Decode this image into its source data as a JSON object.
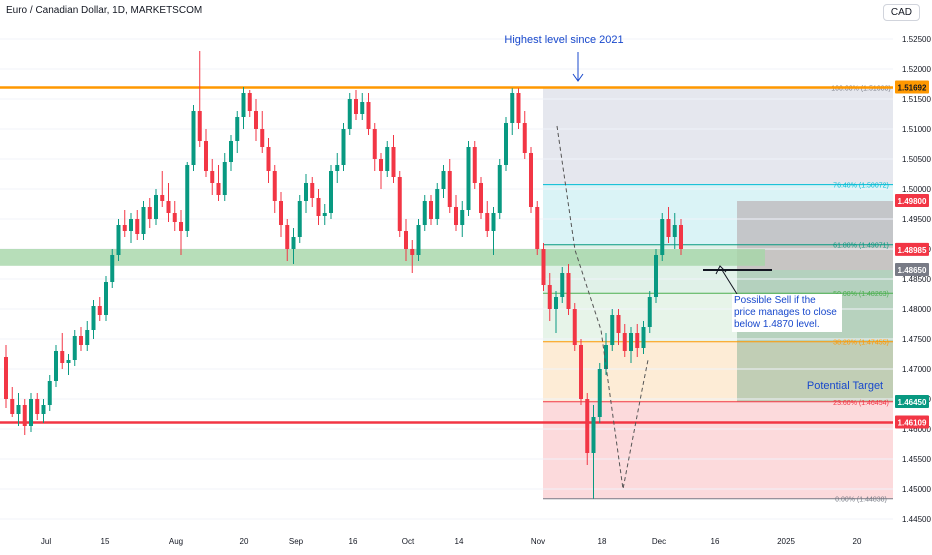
{
  "header": {
    "title": "Euro / Canadian Dollar, 1D, MARKETSCOM",
    "currency": "CAD"
  },
  "chart_data": {
    "type": "candlestick",
    "title": "Euro / Canadian Dollar, 1D, MARKETSCOM",
    "ylim": [
      1.4425,
      1.528
    ],
    "y_ticks": [
      "1.52500",
      "1.52000",
      "1.51500",
      "1.51000",
      "1.50500",
      "1.50000",
      "1.49500",
      "1.49000",
      "1.48500",
      "1.48000",
      "1.47500",
      "1.47000",
      "1.46500",
      "1.46000",
      "1.45500",
      "1.45000",
      "1.44500"
    ],
    "x_ticks": [
      "Jul",
      "15",
      "Aug",
      "20",
      "Sep",
      "16",
      "Oct",
      "14",
      "Nov",
      "18",
      "Dec",
      "16",
      "2025",
      "20"
    ],
    "candles": [
      [
        1.472,
        1.474,
        1.4635,
        1.465
      ],
      [
        1.465,
        1.467,
        1.462,
        1.4625
      ],
      [
        1.4625,
        1.466,
        1.4605,
        1.464
      ],
      [
        1.464,
        1.465,
        1.459,
        1.4605
      ],
      [
        1.4605,
        1.466,
        1.4595,
        1.465
      ],
      [
        1.465,
        1.466,
        1.4615,
        1.4625
      ],
      [
        1.4625,
        1.465,
        1.461,
        1.464
      ],
      [
        1.464,
        1.469,
        1.463,
        1.468
      ],
      [
        1.468,
        1.474,
        1.467,
        1.473
      ],
      [
        1.473,
        1.476,
        1.47,
        1.471
      ],
      [
        1.471,
        1.4725,
        1.469,
        1.4715
      ],
      [
        1.4715,
        1.4765,
        1.4705,
        1.4755
      ],
      [
        1.4755,
        1.477,
        1.473,
        1.474
      ],
      [
        1.474,
        1.478,
        1.473,
        1.4765
      ],
      [
        1.4765,
        1.4815,
        1.475,
        1.4805
      ],
      [
        1.4805,
        1.482,
        1.478,
        1.479
      ],
      [
        1.479,
        1.4855,
        1.478,
        1.4845
      ],
      [
        1.4845,
        1.49,
        1.4835,
        1.489
      ],
      [
        1.489,
        1.495,
        1.488,
        1.494
      ],
      [
        1.494,
        1.4965,
        1.492,
        1.493
      ],
      [
        1.493,
        1.496,
        1.491,
        1.495
      ],
      [
        1.495,
        1.4965,
        1.4915,
        1.4925
      ],
      [
        1.4925,
        1.498,
        1.4915,
        1.497
      ],
      [
        1.497,
        1.4985,
        1.4935,
        1.495
      ],
      [
        1.495,
        1.5,
        1.494,
        1.499
      ],
      [
        1.499,
        1.503,
        1.497,
        1.498
      ],
      [
        1.498,
        1.501,
        1.4945,
        1.496
      ],
      [
        1.496,
        1.498,
        1.493,
        1.4945
      ],
      [
        1.4945,
        1.4965,
        1.489,
        1.493
      ],
      [
        1.493,
        1.5045,
        1.492,
        1.504
      ],
      [
        1.504,
        1.514,
        1.503,
        1.513
      ],
      [
        1.513,
        1.523,
        1.507,
        1.508
      ],
      [
        1.508,
        1.51,
        1.502,
        1.503
      ],
      [
        1.503,
        1.505,
        1.499,
        1.501
      ],
      [
        1.501,
        1.504,
        1.498,
        1.499
      ],
      [
        1.499,
        1.506,
        1.498,
        1.5045
      ],
      [
        1.5045,
        1.509,
        1.503,
        1.508
      ],
      [
        1.508,
        1.513,
        1.506,
        1.512
      ],
      [
        1.512,
        1.517,
        1.51,
        1.516
      ],
      [
        1.516,
        1.5165,
        1.512,
        1.513
      ],
      [
        1.513,
        1.515,
        1.508,
        1.51
      ],
      [
        1.51,
        1.513,
        1.506,
        1.507
      ],
      [
        1.507,
        1.5085,
        1.501,
        1.503
      ],
      [
        1.503,
        1.504,
        1.496,
        1.498
      ],
      [
        1.498,
        1.4995,
        1.492,
        1.494
      ],
      [
        1.494,
        1.495,
        1.488,
        1.49
      ],
      [
        1.49,
        1.4935,
        1.4875,
        1.492
      ],
      [
        1.492,
        1.499,
        1.491,
        1.498
      ],
      [
        1.498,
        1.5025,
        1.496,
        1.501
      ],
      [
        1.501,
        1.502,
        1.497,
        1.4985
      ],
      [
        1.4985,
        1.5,
        1.494,
        1.4955
      ],
      [
        1.4955,
        1.4975,
        1.494,
        1.496
      ],
      [
        1.496,
        1.504,
        1.495,
        1.503
      ],
      [
        1.503,
        1.506,
        1.501,
        1.504
      ],
      [
        1.504,
        1.511,
        1.503,
        1.51
      ],
      [
        1.51,
        1.516,
        1.509,
        1.515
      ],
      [
        1.515,
        1.5165,
        1.5115,
        1.5125
      ],
      [
        1.5125,
        1.516,
        1.5115,
        1.5145
      ],
      [
        1.5145,
        1.516,
        1.509,
        1.51
      ],
      [
        1.51,
        1.511,
        1.503,
        1.505
      ],
      [
        1.505,
        1.506,
        1.5,
        1.503
      ],
      [
        1.503,
        1.508,
        1.502,
        1.507
      ],
      [
        1.507,
        1.509,
        1.501,
        1.502
      ],
      [
        1.502,
        1.503,
        1.492,
        1.493
      ],
      [
        1.493,
        1.495,
        1.488,
        1.49
      ],
      [
        1.49,
        1.4915,
        1.486,
        1.489
      ],
      [
        1.489,
        1.495,
        1.488,
        1.494
      ],
      [
        1.494,
        1.499,
        1.493,
        1.498
      ],
      [
        1.498,
        1.499,
        1.494,
        1.495
      ],
      [
        1.495,
        1.501,
        1.494,
        1.5
      ],
      [
        1.5,
        1.504,
        1.4985,
        1.503
      ],
      [
        1.503,
        1.505,
        1.496,
        1.497
      ],
      [
        1.497,
        1.499,
        1.493,
        1.494
      ],
      [
        1.494,
        1.498,
        1.492,
        1.4965
      ],
      [
        1.4965,
        1.508,
        1.4955,
        1.507
      ],
      [
        1.507,
        1.508,
        1.5,
        1.501
      ],
      [
        1.501,
        1.502,
        1.495,
        1.496
      ],
      [
        1.496,
        1.498,
        1.492,
        1.493
      ],
      [
        1.493,
        1.497,
        1.489,
        1.496
      ],
      [
        1.496,
        1.505,
        1.495,
        1.504
      ],
      [
        1.504,
        1.512,
        1.503,
        1.511
      ],
      [
        1.511,
        1.5168,
        1.509,
        1.516
      ],
      [
        1.516,
        1.5168,
        1.51,
        1.511
      ],
      [
        1.511,
        1.513,
        1.505,
        1.506
      ],
      [
        1.506,
        1.507,
        1.496,
        1.497
      ],
      [
        1.497,
        1.498,
        1.489,
        1.49
      ],
      [
        1.49,
        1.491,
        1.483,
        1.484
      ],
      [
        1.484,
        1.486,
        1.478,
        1.48
      ],
      [
        1.48,
        1.483,
        1.476,
        1.482
      ],
      [
        1.482,
        1.487,
        1.481,
        1.486
      ],
      [
        1.486,
        1.4875,
        1.479,
        1.48
      ],
      [
        1.48,
        1.481,
        1.473,
        1.474
      ],
      [
        1.474,
        1.475,
        1.464,
        1.465
      ],
      [
        1.465,
        1.466,
        1.454,
        1.456
      ],
      [
        1.456,
        1.464,
        1.4484,
        1.462
      ],
      [
        1.462,
        1.471,
        1.461,
        1.47
      ],
      [
        1.47,
        1.476,
        1.469,
        1.474
      ],
      [
        1.474,
        1.48,
        1.473,
        1.479
      ],
      [
        1.479,
        1.48,
        1.474,
        1.476
      ],
      [
        1.476,
        1.4775,
        1.472,
        1.473
      ],
      [
        1.473,
        1.477,
        1.471,
        1.476
      ],
      [
        1.476,
        1.4775,
        1.472,
        1.4735
      ],
      [
        1.4735,
        1.478,
        1.4725,
        1.477
      ],
      [
        1.477,
        1.483,
        1.476,
        1.482
      ],
      [
        1.482,
        1.49,
        1.481,
        1.489
      ],
      [
        1.489,
        1.496,
        1.488,
        1.495
      ],
      [
        1.495,
        1.497,
        1.491,
        1.492
      ],
      [
        1.492,
        1.496,
        1.49,
        1.494
      ],
      [
        1.494,
        1.495,
        1.489,
        1.49
      ]
    ],
    "horizontal_lines": [
      {
        "name": "resistance",
        "value": 1.51692,
        "color": "#ff9800"
      },
      {
        "name": "support",
        "value": 1.46109,
        "color": "#f23645"
      }
    ],
    "zone": {
      "name": "support-zone",
      "low": 1.4877,
      "high": 1.4895,
      "color": "#a5d6a7"
    },
    "fib_levels": [
      {
        "label": "100.00% (1.51688)",
        "value": 1.51688,
        "color": "#787b86"
      },
      {
        "label": "76.40% (1.50072)",
        "value": 1.50072,
        "color": "#00bcd4"
      },
      {
        "label": "61.80% (1.49071)",
        "value": 1.49071,
        "color": "#089981"
      },
      {
        "label": "50.00% (1.48263)",
        "value": 1.48263,
        "color": "#4caf50"
      },
      {
        "label": "38.20% (1.47455)",
        "value": 1.47455,
        "color": "#ff9800"
      },
      {
        "label": "23.60% (1.46454)",
        "value": 1.46454,
        "color": "#f23645"
      },
      {
        "label": "0.00% (1.44838)",
        "value": 1.44838,
        "color": "#787b86"
      }
    ],
    "price_labels": [
      {
        "text": "1.51692",
        "value": 1.51692,
        "bg": "#ff9800",
        "fg": "#131722"
      },
      {
        "text": "1.49800",
        "value": 1.498,
        "bg": "#f23645",
        "fg": "#ffffff"
      },
      {
        "text": "1.48985",
        "value": 1.48985,
        "bg": "#f23645",
        "fg": "#ffffff"
      },
      {
        "text": "1.48650",
        "value": 1.4865,
        "bg": "#787b86",
        "fg": "#ffffff"
      },
      {
        "text": "1.46450",
        "value": 1.4645,
        "bg": "#089981",
        "fg": "#ffffff"
      },
      {
        "text": "1.46109",
        "value": 1.46109,
        "bg": "#f23645",
        "fg": "#ffffff"
      }
    ],
    "position_tool": {
      "entry": 1.4865,
      "stop": 1.498,
      "target": 1.4645
    },
    "sell_level": 1.4865,
    "annotations": {
      "highest": "Highest level since 2021",
      "sell_note": "Possible Sell if the price manages to close below 1.4870 level.",
      "target": "Potential Target"
    },
    "colors": {
      "up": "#089981",
      "down": "#f23645",
      "wick_up": "#089981",
      "wick_down": "#f23645",
      "blue": "#1848cc"
    }
  }
}
